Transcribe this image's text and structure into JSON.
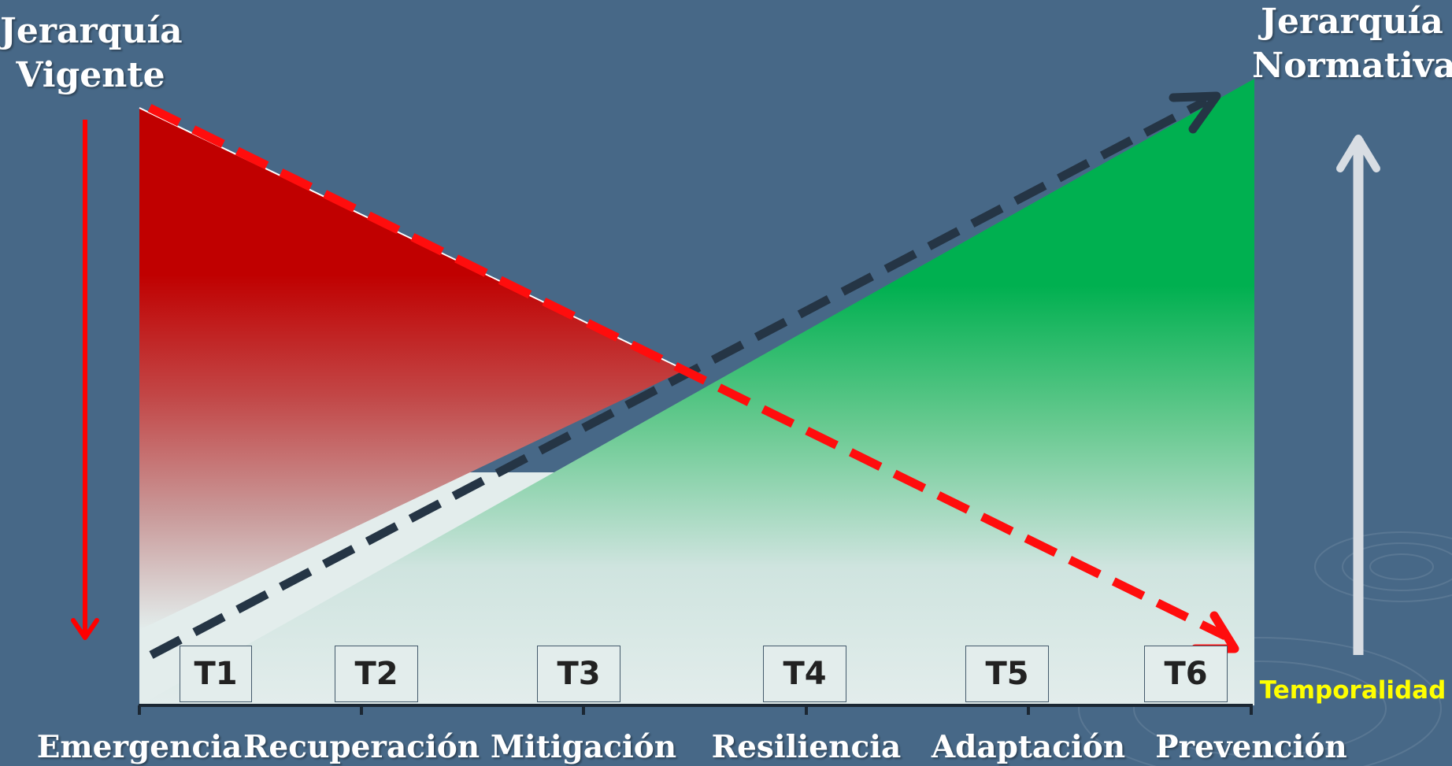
{
  "left_title": "Jerarquía\nVigente",
  "right_title": "Jerarquía\nNormativa",
  "phases": [
    {
      "box": "T1",
      "stage": "Emergencia"
    },
    {
      "box": "T2",
      "stage": "Recuperación"
    },
    {
      "box": "T3",
      "stage": "Mitigación"
    },
    {
      "box": "T4",
      "stage": "Resiliencia"
    },
    {
      "box": "T5",
      "stage": "Adaptación"
    },
    {
      "box": "T6",
      "stage": "Prevención"
    }
  ],
  "x_axis_label": "Temporalidad",
  "colors": {
    "background": "#476887",
    "red_area_top": "#c00000",
    "green_area_top": "#00b050",
    "area_base": "#e3edec",
    "red_dashed_line": "#ff0d0d",
    "dark_dashed_line": "#253545",
    "left_arrow": "#ff0000",
    "right_arrow": "#d8dde3",
    "temporality_text": "#ffff00"
  }
}
